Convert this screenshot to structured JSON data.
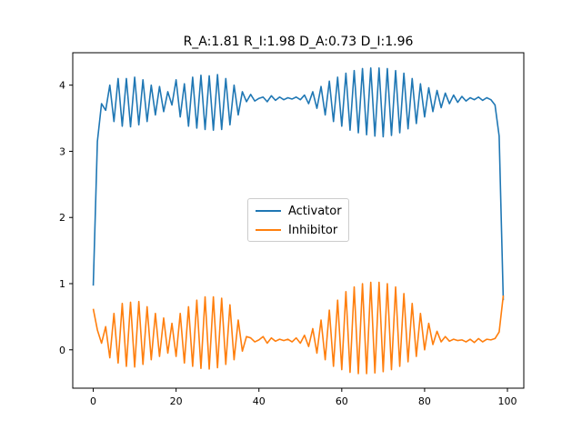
{
  "chart_data": {
    "type": "line",
    "title": "R_A:1.81 R_I:1.98 D_A:0.73 D_I:1.96",
    "xlabel": "",
    "ylabel": "",
    "xlim": [
      -4.95,
      103.95
    ],
    "ylim": [
      -0.58,
      4.49
    ],
    "xticks": [
      0,
      20,
      40,
      60,
      80,
      100
    ],
    "yticks": [
      0,
      1,
      2,
      3,
      4
    ],
    "grid": false,
    "legend_position": "center",
    "x": [
      0,
      1,
      2,
      3,
      4,
      5,
      6,
      7,
      8,
      9,
      10,
      11,
      12,
      13,
      14,
      15,
      16,
      17,
      18,
      19,
      20,
      21,
      22,
      23,
      24,
      25,
      26,
      27,
      28,
      29,
      30,
      31,
      32,
      33,
      34,
      35,
      36,
      37,
      38,
      39,
      40,
      41,
      42,
      43,
      44,
      45,
      46,
      47,
      48,
      49,
      50,
      51,
      52,
      53,
      54,
      55,
      56,
      57,
      58,
      59,
      60,
      61,
      62,
      63,
      64,
      65,
      66,
      67,
      68,
      69,
      70,
      71,
      72,
      73,
      74,
      75,
      76,
      77,
      78,
      79,
      80,
      81,
      82,
      83,
      84,
      85,
      86,
      87,
      88,
      89,
      90,
      91,
      92,
      93,
      94,
      95,
      96,
      97,
      98,
      99
    ],
    "series": [
      {
        "name": "Activator",
        "color": "#1f77b4",
        "values": [
          0.97,
          3.15,
          3.72,
          3.62,
          4.0,
          3.45,
          4.1,
          3.38,
          4.1,
          3.37,
          4.12,
          3.4,
          4.08,
          3.45,
          4.0,
          3.55,
          3.98,
          3.6,
          3.9,
          3.7,
          4.08,
          3.52,
          4.02,
          3.38,
          4.12,
          3.35,
          4.15,
          3.33,
          4.14,
          3.32,
          4.16,
          3.33,
          4.1,
          3.4,
          4.0,
          3.55,
          3.9,
          3.75,
          3.86,
          3.76,
          3.8,
          3.82,
          3.75,
          3.84,
          3.77,
          3.82,
          3.78,
          3.81,
          3.79,
          3.82,
          3.78,
          3.85,
          3.72,
          3.9,
          3.65,
          3.98,
          3.55,
          4.06,
          3.45,
          4.12,
          3.38,
          4.18,
          3.32,
          4.22,
          3.28,
          4.25,
          3.25,
          4.26,
          3.23,
          4.26,
          3.22,
          4.25,
          3.24,
          4.22,
          3.28,
          4.18,
          3.34,
          4.1,
          3.42,
          4.02,
          3.52,
          3.96,
          3.6,
          3.92,
          3.66,
          3.88,
          3.72,
          3.85,
          3.74,
          3.83,
          3.76,
          3.81,
          3.78,
          3.82,
          3.77,
          3.81,
          3.78,
          3.7,
          3.23,
          0.75
        ]
      },
      {
        "name": "Inhibitor",
        "color": "#ff7f0e",
        "values": [
          0.62,
          0.3,
          0.1,
          0.35,
          -0.12,
          0.55,
          -0.2,
          0.7,
          -0.25,
          0.72,
          -0.26,
          0.73,
          -0.22,
          0.65,
          -0.15,
          0.55,
          -0.1,
          0.48,
          -0.05,
          0.4,
          -0.1,
          0.55,
          -0.2,
          0.65,
          -0.25,
          0.75,
          -0.28,
          0.8,
          -0.29,
          0.8,
          -0.27,
          0.78,
          -0.22,
          0.68,
          -0.15,
          0.45,
          -0.02,
          0.2,
          0.18,
          0.12,
          0.15,
          0.2,
          0.1,
          0.18,
          0.13,
          0.16,
          0.14,
          0.16,
          0.12,
          0.18,
          0.1,
          0.22,
          0.05,
          0.32,
          -0.05,
          0.45,
          -0.15,
          0.6,
          -0.25,
          0.75,
          -0.3,
          0.88,
          -0.34,
          0.95,
          -0.36,
          1.0,
          -0.36,
          1.02,
          -0.35,
          1.02,
          -0.33,
          1.0,
          -0.3,
          0.95,
          -0.25,
          0.85,
          -0.18,
          0.7,
          -0.1,
          0.55,
          0.0,
          0.4,
          0.08,
          0.28,
          0.12,
          0.2,
          0.13,
          0.16,
          0.14,
          0.15,
          0.12,
          0.16,
          0.11,
          0.17,
          0.12,
          0.16,
          0.15,
          0.17,
          0.27,
          0.82
        ]
      }
    ]
  }
}
